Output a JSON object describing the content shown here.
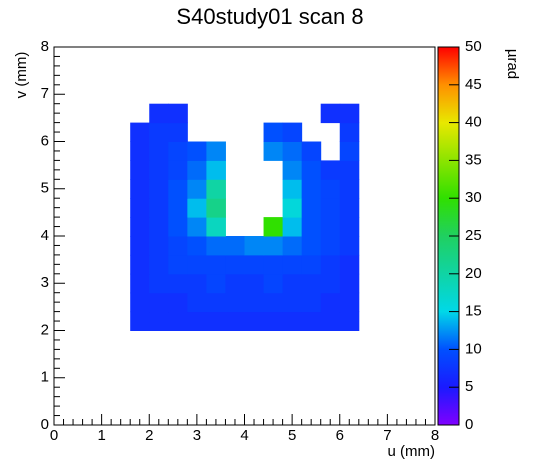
{
  "chart_data": {
    "type": "heatmap",
    "title": "S40study01 scan 8",
    "xlabel": "u (mm)",
    "ylabel": "v (mm)",
    "zlabel": "µrad",
    "xlim": [
      0,
      8
    ],
    "ylim": [
      0,
      8
    ],
    "zlim": [
      0,
      50
    ],
    "xticks": [
      0,
      1,
      2,
      3,
      4,
      5,
      6,
      7,
      8
    ],
    "yticks": [
      0,
      1,
      2,
      3,
      4,
      5,
      6,
      7,
      8
    ],
    "zticks": [
      0,
      5,
      10,
      15,
      20,
      25,
      30,
      35,
      40,
      45,
      50
    ],
    "xbins": [
      1.6,
      2.0,
      2.4,
      2.8,
      3.2,
      3.6,
      4.0,
      4.4,
      4.8,
      5.2,
      5.6,
      6.0,
      6.4
    ],
    "ybins": [
      2.0,
      2.4,
      2.8,
      3.2,
      3.6,
      4.0,
      4.4,
      4.8,
      5.2,
      5.6,
      6.0,
      6.4,
      6.8
    ],
    "z": [
      [
        7,
        7,
        7,
        7,
        7,
        7,
        7,
        7,
        7,
        7,
        7,
        7
      ],
      [
        7,
        7,
        7,
        8,
        8,
        8,
        8,
        8,
        8,
        8,
        7,
        7
      ],
      [
        7,
        8,
        8,
        8,
        9,
        8,
        8,
        9,
        8,
        8,
        8,
        7
      ],
      [
        7,
        8,
        9,
        9,
        9,
        9,
        9,
        9,
        9,
        9,
        8,
        7
      ],
      [
        7,
        8,
        9,
        10,
        11,
        11,
        12,
        12,
        11,
        10,
        9,
        8
      ],
      [
        7,
        8,
        10,
        12,
        18,
        null,
        null,
        30,
        14,
        10,
        9,
        8
      ],
      [
        7,
        8,
        10,
        14,
        22,
        null,
        null,
        null,
        16,
        10,
        9,
        8
      ],
      [
        7,
        8,
        10,
        12,
        20,
        null,
        null,
        null,
        14,
        10,
        9,
        8
      ],
      [
        7,
        8,
        9,
        11,
        14,
        null,
        null,
        null,
        12,
        10,
        8,
        8
      ],
      [
        7,
        8,
        9,
        10,
        12,
        null,
        null,
        12,
        11,
        9,
        null,
        9
      ],
      [
        7,
        8,
        8,
        null,
        null,
        null,
        null,
        10,
        9,
        null,
        null,
        8
      ],
      [
        null,
        7,
        7,
        null,
        null,
        null,
        null,
        null,
        null,
        null,
        7,
        7
      ]
    ]
  }
}
